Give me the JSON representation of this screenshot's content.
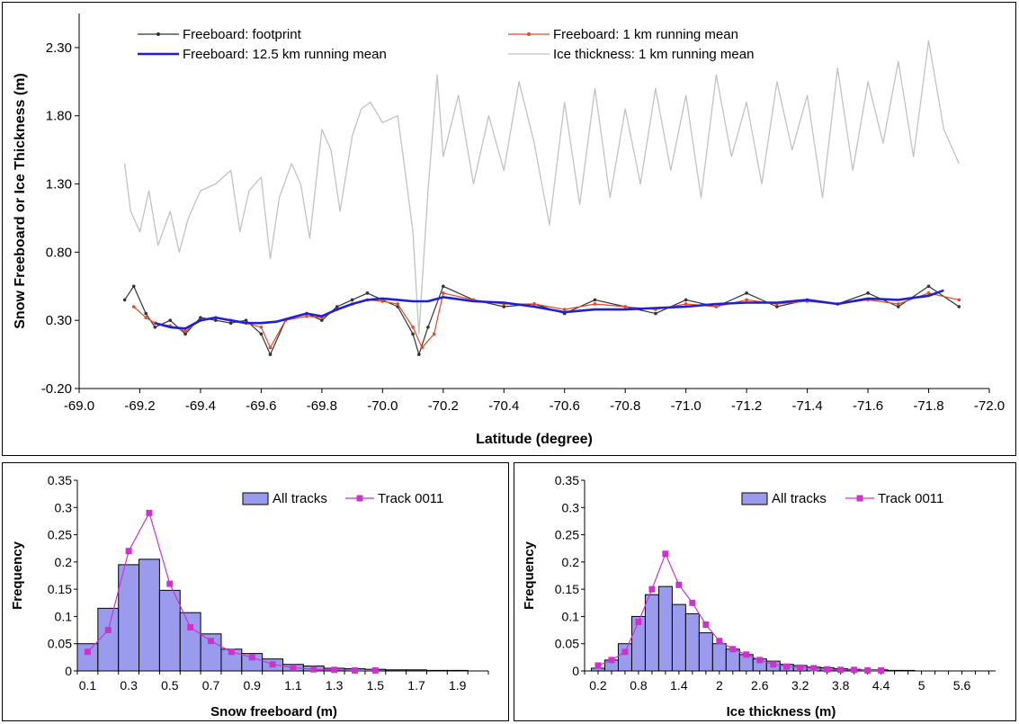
{
  "chart_data": [
    {
      "type": "line",
      "xlabel": "Latitude (degree)",
      "ylabel": "Snow Freeboard or Ice Thickness (m)",
      "xlim": [
        -69.0,
        -72.0
      ],
      "ylim": [
        -0.2,
        2.55
      ],
      "x_ticks": [
        "-69.0",
        "-69.2",
        "-69.4",
        "-69.6",
        "-69.8",
        "-70.0",
        "-70.2",
        "-70.4",
        "-70.6",
        "-70.8",
        "-71.0",
        "-71.2",
        "-71.4",
        "-71.6",
        "-71.8",
        "-72.0"
      ],
      "y_ticks": [
        "-0.20",
        "0.30",
        "0.80",
        "1.30",
        "1.80",
        "2.30"
      ],
      "grid": false,
      "legend": "top",
      "series": [
        {
          "name": "Freeboard: footprint",
          "color": "#333333",
          "style": "thin-line-with-dots",
          "x": [
            -69.15,
            -69.18,
            -69.22,
            -69.25,
            -69.3,
            -69.35,
            -69.4,
            -69.45,
            -69.5,
            -69.55,
            -69.6,
            -69.63,
            -69.68,
            -69.75,
            -69.8,
            -69.85,
            -69.9,
            -69.95,
            -70.0,
            -70.05,
            -70.1,
            -70.12,
            -70.15,
            -70.2,
            -70.3,
            -70.4,
            -70.5,
            -70.6,
            -70.7,
            -70.8,
            -70.9,
            -71.0,
            -71.1,
            -71.2,
            -71.3,
            -71.4,
            -71.5,
            -71.6,
            -71.7,
            -71.8,
            -71.9
          ],
          "y": [
            0.45,
            0.55,
            0.35,
            0.25,
            0.3,
            0.2,
            0.32,
            0.3,
            0.28,
            0.3,
            0.2,
            0.05,
            0.3,
            0.35,
            0.3,
            0.4,
            0.45,
            0.5,
            0.45,
            0.4,
            0.2,
            0.05,
            0.25,
            0.55,
            0.45,
            0.4,
            0.42,
            0.35,
            0.45,
            0.4,
            0.35,
            0.45,
            0.4,
            0.5,
            0.4,
            0.45,
            0.42,
            0.5,
            0.4,
            0.55,
            0.4
          ]
        },
        {
          "name": "Freeboard: 1 km running mean",
          "color": "#e34a2a",
          "style": "line-with-dots",
          "x": [
            -69.18,
            -69.22,
            -69.25,
            -69.3,
            -69.35,
            -69.4,
            -69.45,
            -69.5,
            -69.55,
            -69.6,
            -69.63,
            -69.68,
            -69.75,
            -69.8,
            -69.85,
            -69.9,
            -69.95,
            -70.0,
            -70.05,
            -70.1,
            -70.13,
            -70.17,
            -70.2,
            -70.3,
            -70.4,
            -70.5,
            -70.6,
            -70.7,
            -70.8,
            -70.9,
            -71.0,
            -71.1,
            -71.2,
            -71.3,
            -71.4,
            -71.5,
            -71.6,
            -71.7,
            -71.8,
            -71.9
          ],
          "y": [
            0.4,
            0.32,
            0.28,
            0.26,
            0.22,
            0.3,
            0.32,
            0.3,
            0.28,
            0.25,
            0.1,
            0.3,
            0.33,
            0.32,
            0.38,
            0.42,
            0.45,
            0.44,
            0.42,
            0.25,
            0.1,
            0.2,
            0.5,
            0.45,
            0.42,
            0.42,
            0.38,
            0.42,
            0.4,
            0.38,
            0.42,
            0.4,
            0.45,
            0.42,
            0.44,
            0.42,
            0.45,
            0.42,
            0.5,
            0.45
          ]
        },
        {
          "name": "Freeboard: 12.5 km running mean",
          "color": "#1f1fd6",
          "style": "thick-line",
          "x": [
            -69.25,
            -69.3,
            -69.35,
            -69.4,
            -69.45,
            -69.5,
            -69.55,
            -69.6,
            -69.65,
            -69.7,
            -69.75,
            -69.8,
            -69.85,
            -69.9,
            -69.95,
            -70.0,
            -70.05,
            -70.1,
            -70.15,
            -70.2,
            -70.3,
            -70.4,
            -70.5,
            -70.6,
            -70.7,
            -70.8,
            -70.9,
            -71.0,
            -71.1,
            -71.2,
            -71.3,
            -71.4,
            -71.5,
            -71.6,
            -71.7,
            -71.8,
            -71.85
          ],
          "y": [
            0.28,
            0.25,
            0.24,
            0.3,
            0.32,
            0.3,
            0.28,
            0.28,
            0.29,
            0.32,
            0.35,
            0.33,
            0.38,
            0.42,
            0.45,
            0.46,
            0.45,
            0.44,
            0.44,
            0.47,
            0.44,
            0.43,
            0.4,
            0.36,
            0.38,
            0.38,
            0.39,
            0.4,
            0.42,
            0.43,
            0.43,
            0.45,
            0.42,
            0.46,
            0.45,
            0.48,
            0.52
          ]
        },
        {
          "name": "Ice thickness: 1 km running mean",
          "color": "#bfc3c4",
          "style": "thin-line",
          "x": [
            -69.15,
            -69.17,
            -69.2,
            -69.23,
            -69.26,
            -69.3,
            -69.33,
            -69.36,
            -69.4,
            -69.45,
            -69.5,
            -69.53,
            -69.56,
            -69.6,
            -69.63,
            -69.66,
            -69.7,
            -69.73,
            -69.76,
            -69.8,
            -69.83,
            -69.86,
            -69.9,
            -69.93,
            -69.96,
            -70.0,
            -70.05,
            -70.08,
            -70.1,
            -70.12,
            -70.15,
            -70.18,
            -70.2,
            -70.25,
            -70.3,
            -70.35,
            -70.4,
            -70.45,
            -70.5,
            -70.55,
            -70.6,
            -70.65,
            -70.7,
            -70.75,
            -70.8,
            -70.85,
            -70.9,
            -70.95,
            -71.0,
            -71.05,
            -71.1,
            -71.15,
            -71.2,
            -71.25,
            -71.3,
            -71.35,
            -71.4,
            -71.45,
            -71.5,
            -71.55,
            -71.6,
            -71.65,
            -71.7,
            -71.75,
            -71.8,
            -71.85,
            -71.9
          ],
          "y": [
            1.45,
            1.1,
            0.95,
            1.25,
            0.85,
            1.1,
            0.8,
            1.05,
            1.25,
            1.3,
            1.4,
            0.95,
            1.25,
            1.35,
            0.75,
            1.2,
            1.45,
            1.3,
            0.9,
            1.7,
            1.55,
            1.1,
            1.65,
            1.85,
            1.9,
            1.75,
            1.8,
            1.3,
            0.95,
            0.2,
            1.25,
            2.1,
            1.5,
            1.95,
            1.3,
            1.8,
            1.4,
            2.05,
            1.6,
            1.0,
            1.9,
            1.15,
            2.0,
            1.2,
            1.85,
            1.3,
            2.0,
            1.4,
            1.95,
            1.2,
            2.1,
            1.5,
            1.9,
            1.3,
            2.05,
            1.55,
            1.95,
            1.2,
            2.15,
            1.4,
            2.05,
            1.6,
            2.2,
            1.5,
            2.35,
            1.7,
            1.45
          ]
        }
      ]
    },
    {
      "type": "bar",
      "xlabel": "Snow freeboard (m)",
      "ylabel": "Frequency",
      "ylim": [
        0,
        0.35
      ],
      "x_range": [
        0.05,
        2.05
      ],
      "x_ticks": [
        "0.1",
        "0.3",
        "0.5",
        "0.7",
        "0.9",
        "1.1",
        "1.3",
        "1.5",
        "1.7",
        "1.9"
      ],
      "y_ticks": [
        "0",
        "0.05",
        "0.1",
        "0.15",
        "0.2",
        "0.25",
        "0.3",
        "0.35"
      ],
      "legend": "top-right",
      "series": [
        {
          "name": "All tracks",
          "kind": "bar",
          "color": "#9b9bee",
          "bin_width": 0.1,
          "x": [
            0.1,
            0.2,
            0.3,
            0.4,
            0.5,
            0.6,
            0.7,
            0.8,
            0.9,
            1.0,
            1.1,
            1.2,
            1.3,
            1.4,
            1.5,
            1.6,
            1.7,
            1.8,
            1.9,
            2.0
          ],
          "values": [
            0.05,
            0.115,
            0.195,
            0.205,
            0.148,
            0.107,
            0.068,
            0.04,
            0.032,
            0.022,
            0.012,
            0.009,
            0.005,
            0.004,
            0.003,
            0.002,
            0.002,
            0.001,
            0.001,
            0.0
          ]
        },
        {
          "name": "Track 0011",
          "kind": "line",
          "color": "#cc33cc",
          "x": [
            0.1,
            0.2,
            0.3,
            0.4,
            0.5,
            0.6,
            0.7,
            0.8,
            0.9,
            1.0,
            1.1,
            1.2,
            1.3,
            1.4,
            1.5
          ],
          "values": [
            0.035,
            0.075,
            0.22,
            0.29,
            0.16,
            0.08,
            0.055,
            0.035,
            0.025,
            0.012,
            0.006,
            0.003,
            0.002,
            0.001,
            0.001
          ]
        }
      ]
    },
    {
      "type": "bar",
      "xlabel": "Ice thickness (m)",
      "ylabel": "Frequency",
      "ylim": [
        0,
        0.35
      ],
      "x_range": [
        0.0,
        6.1
      ],
      "x_ticks": [
        "0.2",
        "0.8",
        "1.4",
        "2",
        "2.6",
        "3.2",
        "3.8",
        "4.4",
        "5",
        "5.6"
      ],
      "y_ticks": [
        "0",
        "0.05",
        "0.1",
        "0.15",
        "0.2",
        "0.25",
        "0.3",
        "0.35"
      ],
      "legend": "top-right",
      "series": [
        {
          "name": "All tracks",
          "kind": "bar",
          "color": "#9b9bee",
          "bin_width": 0.2,
          "x": [
            0.2,
            0.4,
            0.6,
            0.8,
            1.0,
            1.2,
            1.4,
            1.6,
            1.8,
            2.0,
            2.2,
            2.4,
            2.6,
            2.8,
            3.0,
            3.2,
            3.4,
            3.6,
            3.8,
            4.0,
            4.2,
            4.4,
            4.6,
            4.8,
            5.0,
            5.2,
            5.4,
            5.6,
            5.8,
            6.0
          ],
          "values": [
            0.005,
            0.02,
            0.05,
            0.1,
            0.14,
            0.155,
            0.122,
            0.105,
            0.07,
            0.05,
            0.04,
            0.03,
            0.022,
            0.018,
            0.012,
            0.01,
            0.007,
            0.006,
            0.004,
            0.003,
            0.002,
            0.002,
            0.001,
            0.001,
            0.0,
            0.0,
            0.0,
            0.0,
            0.0,
            0.0
          ]
        },
        {
          "name": "Track 0011",
          "kind": "line",
          "color": "#cc33cc",
          "x": [
            0.2,
            0.4,
            0.6,
            0.8,
            1.0,
            1.2,
            1.4,
            1.6,
            1.8,
            2.0,
            2.2,
            2.4,
            2.6,
            2.8,
            3.0,
            3.2,
            3.4,
            3.6,
            3.8,
            4.0,
            4.2,
            4.4
          ],
          "values": [
            0.01,
            0.02,
            0.035,
            0.09,
            0.15,
            0.215,
            0.158,
            0.125,
            0.085,
            0.055,
            0.04,
            0.03,
            0.02,
            0.012,
            0.008,
            0.006,
            0.005,
            0.003,
            0.002,
            0.002,
            0.001,
            0.001
          ]
        }
      ]
    }
  ]
}
